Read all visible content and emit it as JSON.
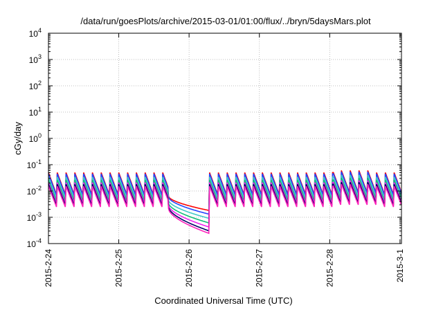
{
  "chart_data": {
    "type": "line",
    "title": "/data/run/goesPlots/archive/2015-03-01/01:00/flux/../bryn/5daysMars.plot",
    "xlabel": "Coordinated Universal Time (UTC)",
    "ylabel": "cGy/day",
    "yscale": "log",
    "ylim": [
      0.0001,
      10000
    ],
    "xlim": [
      "2015-02-24",
      "2015-03-01 00:30"
    ],
    "grid": true,
    "legend": "none",
    "x_ticks": [
      "2015-2-24",
      "2015-2-25",
      "2015-2-26",
      "2015-2-27",
      "2015-2-28",
      "2015-3-1"
    ],
    "y_ticks": [
      {
        "base": "10",
        "exp": "-4"
      },
      {
        "base": "10",
        "exp": "-3"
      },
      {
        "base": "10",
        "exp": "-2"
      },
      {
        "base": "10",
        "exp": "-1"
      },
      {
        "base": "10",
        "exp": "0"
      },
      {
        "base": "10",
        "exp": "1"
      },
      {
        "base": "10",
        "exp": "2"
      },
      {
        "base": "10",
        "exp": "3"
      },
      {
        "base": "10",
        "exp": "4"
      }
    ],
    "sawtooth_period_hours": 3,
    "decay_start_hour": 41,
    "decay_end_hour": 55,
    "series": [
      {
        "color": "#ff0000",
        "peak": 0.05,
        "trough": 0.0062,
        "min": 0.0018
      },
      {
        "color": "#2244ff",
        "peak": 0.045,
        "trough": 0.0058,
        "min": 0.0013
      },
      {
        "color": "#40c8c8",
        "peak": 0.034,
        "trough": 0.0044,
        "min": 0.0009
      },
      {
        "color": "#11bb77",
        "peak": 0.026,
        "trough": 0.0034,
        "min": 0.0006
      },
      {
        "color": "#ee22ee",
        "peak": 0.021,
        "trough": 0.0028,
        "min": 0.00042
      },
      {
        "color": "#000066",
        "peak": 0.018,
        "trough": 0.0024,
        "min": 0.0003
      },
      {
        "color": "#ff22bb",
        "peak": 0.015,
        "trough": 0.0021,
        "min": 0.00024
      }
    ]
  }
}
